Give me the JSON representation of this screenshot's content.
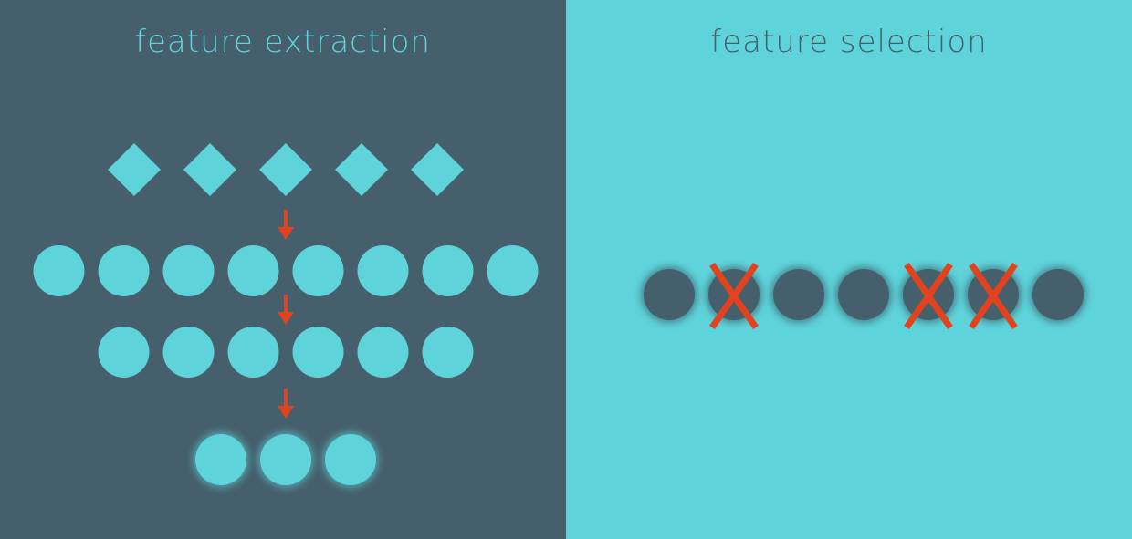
{
  "left_panel": {
    "title": "feature extraction",
    "background": "#455f6c",
    "accent": "#5fd3da",
    "rows": [
      {
        "shape": "diamond",
        "count": 5
      },
      {
        "shape": "circle",
        "count": 8
      },
      {
        "shape": "circle",
        "count": 6
      },
      {
        "shape": "circle",
        "count": 3,
        "glow": true
      }
    ],
    "arrow_color": "#e2431e"
  },
  "right_panel": {
    "title": "feature selection",
    "background": "#5fd3da",
    "circle_color": "#455f6c",
    "circles": [
      {
        "crossed": false
      },
      {
        "crossed": true
      },
      {
        "crossed": false
      },
      {
        "crossed": false
      },
      {
        "crossed": true
      },
      {
        "crossed": true
      },
      {
        "crossed": false
      }
    ],
    "cross_color": "#e2431e"
  }
}
